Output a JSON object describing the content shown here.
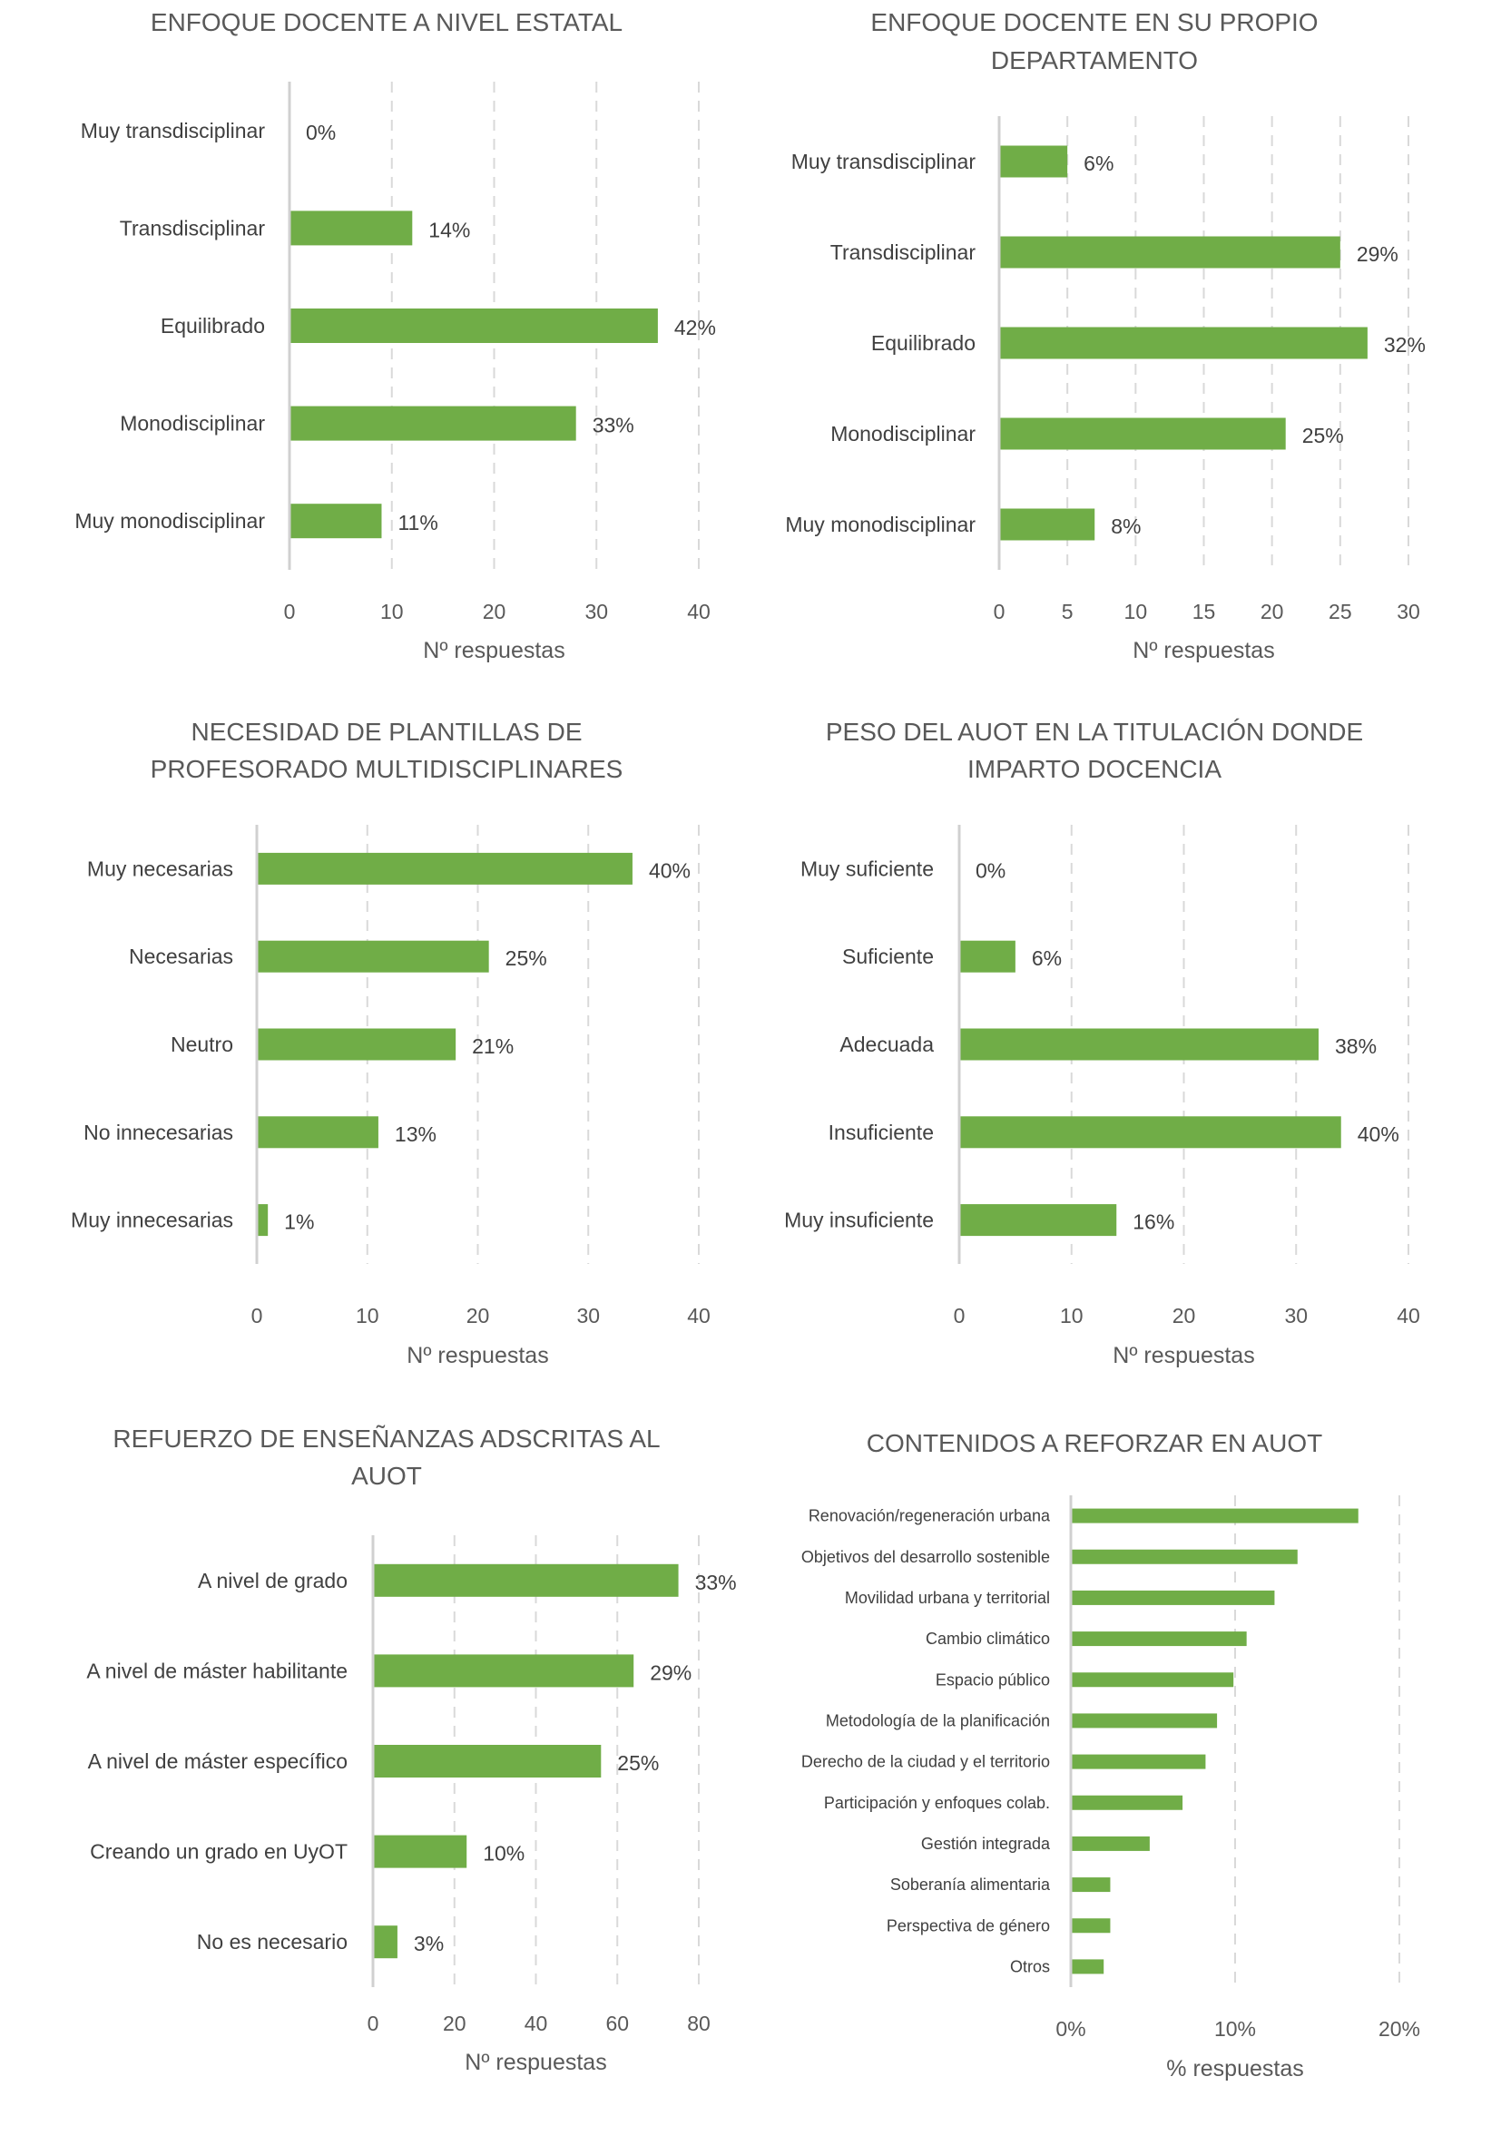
{
  "colors": {
    "bar": "#70ad47",
    "text": "#404040",
    "grid": "#d9d9d9"
  },
  "chart_data": [
    {
      "type": "bar",
      "orientation": "horizontal",
      "title": [
        "ENFOQUE DOCENTE A NIVEL ESTATAL"
      ],
      "categories": [
        "Muy transdisciplinar",
        "Transdisciplinar",
        "Equilibrado",
        "Monodisciplinar",
        "Muy monodisciplinar"
      ],
      "values": [
        0,
        12,
        36,
        28,
        9
      ],
      "data_labels": [
        "0%",
        "14%",
        "42%",
        "33%",
        "11%"
      ],
      "xlabel": "Nº respuestas",
      "xlim": [
        0,
        40
      ],
      "ticks": [
        0,
        10,
        20,
        30,
        40
      ],
      "tick_labels": [
        "0",
        "10",
        "20",
        "30",
        "40"
      ],
      "grid": true
    },
    {
      "type": "bar",
      "orientation": "horizontal",
      "title": [
        "ENFOQUE DOCENTE EN SU PROPIO",
        "DEPARTAMENTO"
      ],
      "categories": [
        "Muy transdisciplinar",
        "Transdisciplinar",
        "Equilibrado",
        "Monodisciplinar",
        "Muy monodisciplinar"
      ],
      "values": [
        5,
        25,
        27,
        21,
        7
      ],
      "data_labels": [
        "6%",
        "29%",
        "32%",
        "25%",
        "8%"
      ],
      "xlabel": "Nº respuestas",
      "xlim": [
        0,
        30
      ],
      "ticks": [
        0,
        5,
        10,
        15,
        20,
        25,
        30
      ],
      "tick_labels": [
        "0",
        "5",
        "10",
        "15",
        "20",
        "25",
        "30"
      ],
      "grid": true
    },
    {
      "type": "bar",
      "orientation": "horizontal",
      "title": [
        "NECESIDAD DE PLANTILLAS DE",
        "PROFESORADO MULTIDISCIPLINARES"
      ],
      "categories": [
        "Muy necesarias",
        "Necesarias",
        "Neutro",
        "No innecesarias",
        "Muy innecesarias"
      ],
      "values": [
        34,
        21,
        18,
        11,
        1
      ],
      "data_labels": [
        "40%",
        "25%",
        "21%",
        "13%",
        "1%"
      ],
      "xlabel": "Nº respuestas",
      "xlim": [
        0,
        40
      ],
      "ticks": [
        0,
        10,
        20,
        30,
        40
      ],
      "tick_labels": [
        "0",
        "10",
        "20",
        "30",
        "40"
      ],
      "grid": true
    },
    {
      "type": "bar",
      "orientation": "horizontal",
      "title": [
        "PESO DEL AUOT EN LA TITULACIÓN DONDE",
        "IMPARTO DOCENCIA"
      ],
      "categories": [
        "Muy suficiente",
        "Suficiente",
        "Adecuada",
        "Insuficiente",
        "Muy insuficiente"
      ],
      "values": [
        0,
        5,
        32,
        34,
        14
      ],
      "data_labels": [
        "0%",
        "6%",
        "38%",
        "40%",
        "16%"
      ],
      "xlabel": "Nº respuestas",
      "xlim": [
        0,
        40
      ],
      "ticks": [
        0,
        10,
        20,
        30,
        40
      ],
      "tick_labels": [
        "0",
        "10",
        "20",
        "30",
        "40"
      ],
      "grid": true
    },
    {
      "type": "bar",
      "orientation": "horizontal",
      "title": [
        "REFUERZO DE ENSEÑANZAS ADSCRITAS AL",
        "AUOT"
      ],
      "categories": [
        "A nivel de grado",
        "A nivel de máster habilitante",
        "A nivel de máster específico",
        "Creando un grado en UyOT",
        "No es necesario"
      ],
      "values": [
        75,
        64,
        56,
        23,
        6
      ],
      "data_labels": [
        "33%",
        "29%",
        "25%",
        "10%",
        "3%"
      ],
      "xlabel": "Nº respuestas",
      "xlim": [
        0,
        80
      ],
      "ticks": [
        0,
        20,
        40,
        60,
        80
      ],
      "tick_labels": [
        "0",
        "20",
        "40",
        "60",
        "80"
      ],
      "grid": true
    },
    {
      "type": "bar",
      "orientation": "horizontal",
      "title": [
        "CONTENIDOS A REFORZAR EN AUOT"
      ],
      "categories": [
        "Renovación/regeneración urbana",
        "Objetivos del desarrollo sostenible",
        "Movilidad urbana y territorial",
        "Cambio climático",
        "Espacio público",
        "Metodología de la planificación",
        "Derecho de la ciudad y el territorio",
        "Participación y enfoques colab.",
        "Gestión integrada",
        "Soberanía alimentaria",
        "Perspectiva de género",
        "Otros"
      ],
      "values": [
        17.5,
        13.8,
        12.4,
        10.7,
        9.9,
        8.9,
        8.2,
        6.8,
        4.8,
        2.4,
        2.4,
        2.0
      ],
      "data_labels": [],
      "xlabel": "% respuestas",
      "xlim": [
        0,
        20
      ],
      "ticks": [
        0,
        10,
        20
      ],
      "tick_labels": [
        "0%",
        "10%",
        "20%"
      ],
      "grid": true
    }
  ]
}
